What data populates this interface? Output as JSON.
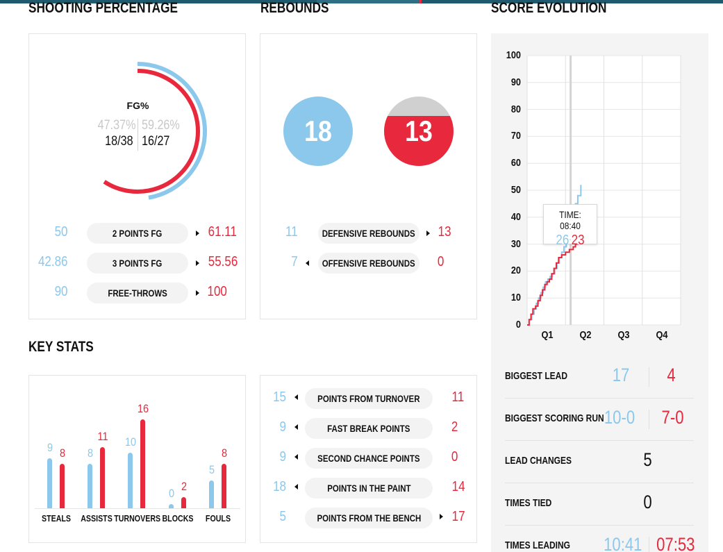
{
  "colors": {
    "home": "#8cc8ec",
    "away": "#e8283c",
    "muted": "#c8c8c8"
  },
  "sections": {
    "shooting": "SHOOTING PERCENTAGE",
    "rebounds": "REBOUNDS",
    "score_evolution": "SCORE EVOLUTION",
    "key_stats": "KEY STATS"
  },
  "shooting": {
    "fg_label": "FG%",
    "home_pct": "47.37%",
    "away_pct": "59.26%",
    "home_made": "18/38",
    "away_made": "16/27",
    "home_fraction": 0.4737,
    "away_fraction": 0.5926,
    "rows": [
      {
        "label": "2 POINTS FG",
        "home": "50",
        "away": "61.11",
        "arrow": "right"
      },
      {
        "label": "3 POINTS FG",
        "home": "42.86",
        "away": "55.56",
        "arrow": "right"
      },
      {
        "label": "FREE-THROWS",
        "home": "90",
        "away": "100",
        "arrow": "right"
      }
    ]
  },
  "rebounds": {
    "home_total": "18",
    "away_total": "13",
    "away_fill_fraction": 0.72,
    "rows": [
      {
        "label": "DEFENSIVE REBOUNDS",
        "home": "11",
        "away": "13",
        "arrow": "right"
      },
      {
        "label": "OFFENSIVE REBOUNDS",
        "home": "7",
        "away": "0",
        "arrow": "left"
      }
    ]
  },
  "key_stats": {
    "bars": [
      {
        "label": "STEALS",
        "home": 9,
        "away": 8
      },
      {
        "label": "ASSISTS",
        "home": 8,
        "away": 11
      },
      {
        "label": "TURNOVERS",
        "home": 10,
        "away": 16
      },
      {
        "label": "BLOCKS",
        "home": 0,
        "away": 2
      },
      {
        "label": "FOULS",
        "home": 5,
        "away": 8
      }
    ],
    "rows": [
      {
        "label": "POINTS FROM TURNOVER",
        "home": "15",
        "away": "11",
        "arrow": "left"
      },
      {
        "label": "FAST BREAK POINTS",
        "home": "9",
        "away": "2",
        "arrow": "left"
      },
      {
        "label": "SECOND CHANCE POINTS",
        "home": "9",
        "away": "0",
        "arrow": "left"
      },
      {
        "label": "POINTS IN THE PAINT",
        "home": "18",
        "away": "14",
        "arrow": "left"
      },
      {
        "label": "POINTS FROM THE BENCH",
        "home": "5",
        "away": "17",
        "arrow": "right"
      }
    ]
  },
  "chart_data": {
    "type": "line",
    "x_categories": [
      "Q1",
      "Q2",
      "Q3",
      "Q4"
    ],
    "xlim": [
      0,
      40
    ],
    "ylim": [
      0,
      100
    ],
    "y_ticks": [
      0,
      10,
      20,
      30,
      40,
      50,
      60,
      70,
      80,
      90,
      100
    ],
    "grid": true,
    "current_minute": 11.33,
    "tooltip": {
      "time_label": "TIME: 08:40",
      "home": "26",
      "sep": ":",
      "away": "23"
    },
    "series": [
      {
        "color": "#8cc8ec",
        "points": [
          [
            0,
            0
          ],
          [
            0.6,
            2
          ],
          [
            1.2,
            4
          ],
          [
            1.8,
            6
          ],
          [
            2.4,
            8
          ],
          [
            3,
            10
          ],
          [
            3.6,
            12
          ],
          [
            4.2,
            14
          ],
          [
            4.8,
            16
          ],
          [
            5.4,
            17
          ],
          [
            6,
            18
          ],
          [
            6.6,
            19
          ],
          [
            7.2,
            21
          ],
          [
            7.8,
            23
          ],
          [
            8.4,
            25
          ],
          [
            9,
            27
          ],
          [
            9.6,
            29
          ],
          [
            10.2,
            31
          ],
          [
            10.8,
            34
          ],
          [
            11.4,
            37
          ],
          [
            12,
            41
          ],
          [
            12.6,
            45
          ],
          [
            13.2,
            48
          ],
          [
            14,
            52
          ]
        ]
      },
      {
        "color": "#e8283c",
        "points": [
          [
            0,
            0
          ],
          [
            0.5,
            2
          ],
          [
            1,
            4
          ],
          [
            1.5,
            6
          ],
          [
            2.2,
            7
          ],
          [
            2.8,
            9
          ],
          [
            3.4,
            11
          ],
          [
            4,
            13
          ],
          [
            4.6,
            15
          ],
          [
            5.2,
            16
          ],
          [
            5.8,
            17
          ],
          [
            6.4,
            19
          ],
          [
            7,
            21
          ],
          [
            7.6,
            23
          ],
          [
            8.2,
            25
          ],
          [
            9,
            26
          ],
          [
            10,
            27
          ],
          [
            11,
            28
          ],
          [
            12,
            29
          ],
          [
            12.6,
            30
          ],
          [
            13.2,
            35
          ],
          [
            14,
            39
          ]
        ]
      }
    ]
  },
  "summary": [
    {
      "label": "BIGGEST LEAD",
      "home": "17",
      "away": "4"
    },
    {
      "label": "BIGGEST SCORING RUN",
      "home": "10-0",
      "away": "7-0"
    },
    {
      "label": "LEAD CHANGES",
      "center": "5"
    },
    {
      "label": "TIMES TIED",
      "center": "0"
    },
    {
      "label": "TIMES LEADING",
      "home": "10:41",
      "away": "07:53"
    }
  ]
}
